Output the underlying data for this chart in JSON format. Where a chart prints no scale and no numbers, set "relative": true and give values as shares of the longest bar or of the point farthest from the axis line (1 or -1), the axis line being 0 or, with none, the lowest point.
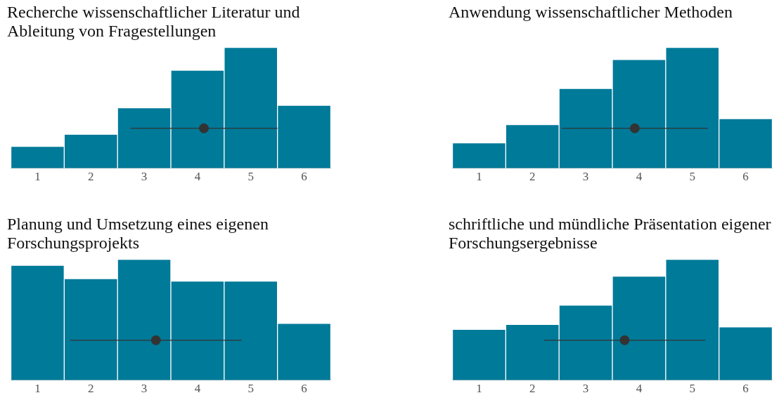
{
  "chart_data": [
    {
      "type": "bar",
      "title": "Recherche wissenschaftlicher Literatur und Ableitung von Fragestellungen",
      "relative": true,
      "x": [
        1,
        2,
        3,
        4,
        5,
        6
      ],
      "xlim": [
        0.5,
        6.5
      ],
      "xticks": [
        1,
        2,
        3,
        4,
        5,
        6
      ],
      "grid": false,
      "legend": false,
      "series": [
        {
          "color": "#007a99",
          "values": [
            0.18,
            0.28,
            0.5,
            0.81,
            1,
            0.52
          ]
        },
        {
          "type": "scatter",
          "color": "#333333",
          "x": [
            4.12
          ],
          "values": [
            0.33
          ],
          "xerrors": [
            1.38
          ]
        }
      ]
    },
    {
      "type": "bar",
      "title": "Anwendung wissenschaftlicher Methoden",
      "relative": true,
      "x": [
        1,
        2,
        3,
        4,
        5,
        6
      ],
      "xlim": [
        0.5,
        6.5
      ],
      "xticks": [
        1,
        2,
        3,
        4,
        5,
        6
      ],
      "grid": false,
      "legend": false,
      "series": [
        {
          "color": "#007a99",
          "values": [
            0.21,
            0.36,
            0.66,
            0.9,
            1,
            0.41
          ]
        },
        {
          "type": "scatter",
          "color": "#333333",
          "x": [
            3.92
          ],
          "values": [
            0.33
          ],
          "xerrors": [
            1.37
          ]
        }
      ]
    },
    {
      "type": "bar",
      "title": "Planung und Umsetzung eines eigenen Forschungsprojekts",
      "relative": true,
      "x": [
        1,
        2,
        3,
        4,
        5,
        6
      ],
      "xlim": [
        0.5,
        6.5
      ],
      "xticks": [
        1,
        2,
        3,
        4,
        5,
        6
      ],
      "grid": false,
      "legend": false,
      "series": [
        {
          "color": "#007a99",
          "values": [
            0.95,
            0.84,
            1,
            0.82,
            0.82,
            0.47
          ]
        },
        {
          "type": "scatter",
          "color": "#333333",
          "x": [
            3.22
          ],
          "values": [
            0.33
          ],
          "xerrors": [
            1.61
          ]
        }
      ]
    },
    {
      "type": "bar",
      "title": "schriftliche und mündliche Präsentation eigener Forschungsergebnisse",
      "relative": true,
      "x": [
        1,
        2,
        3,
        4,
        5,
        6
      ],
      "xlim": [
        0.5,
        6.5
      ],
      "xticks": [
        1,
        2,
        3,
        4,
        5,
        6
      ],
      "grid": false,
      "legend": false,
      "series": [
        {
          "color": "#007a99",
          "values": [
            0.42,
            0.46,
            0.62,
            0.86,
            1,
            0.44
          ]
        },
        {
          "type": "scatter",
          "color": "#333333",
          "x": [
            3.73
          ],
          "values": [
            0.33
          ],
          "xerrors": [
            1.51
          ]
        }
      ]
    }
  ]
}
